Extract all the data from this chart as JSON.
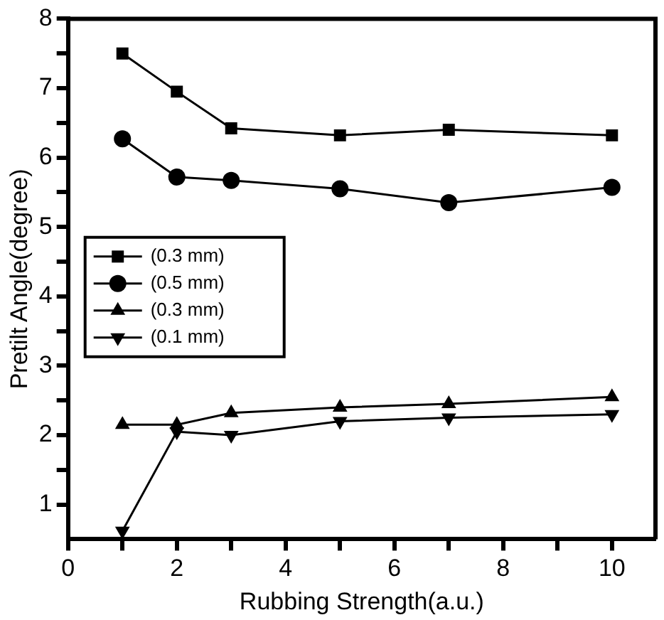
{
  "chart_data": {
    "type": "line",
    "xlabel": "Rubbing Strength(a.u.)",
    "ylabel": "Pretilt Angle(degree)",
    "x": [
      1,
      2,
      3,
      5,
      7,
      10
    ],
    "series": [
      {
        "name": "(0.3 mm)",
        "color": "#000000",
        "marker": "square",
        "values": [
          7.5,
          6.95,
          6.42,
          6.32,
          6.4,
          6.32
        ]
      },
      {
        "name": "(0.5 mm)",
        "color": "#000000",
        "marker": "circle",
        "values": [
          6.27,
          5.72,
          5.67,
          5.55,
          5.35,
          5.57
        ]
      },
      {
        "name": "(0.3 mm)",
        "color": "#000000",
        "marker": "triangle",
        "values": [
          2.15,
          2.15,
          2.32,
          2.4,
          2.45,
          2.55
        ]
      },
      {
        "name": "(0.1 mm)",
        "color": "#000000",
        "marker": "triangle-down",
        "values": [
          0.62,
          2.05,
          2.0,
          2.2,
          2.25,
          2.3
        ]
      }
    ],
    "xlim": [
      0,
      10.8
    ],
    "ylim": [
      0.5,
      8
    ],
    "xticks": [
      0,
      {
        "value": 1,
        "label": null
      },
      2,
      {
        "value": 3,
        "label": null
      },
      4,
      {
        "value": 5,
        "label": null
      },
      6,
      {
        "value": 7,
        "label": null
      },
      8,
      {
        "value": 9,
        "label": null
      },
      10
    ],
    "yticks": [
      1,
      {
        "value": 1.5,
        "label": null
      },
      2,
      {
        "value": 2.5,
        "label": null
      },
      3,
      {
        "value": 3.5,
        "label": null
      },
      4,
      {
        "value": 4.5,
        "label": null
      },
      5,
      {
        "value": 5.5,
        "label": null
      },
      6,
      {
        "value": 6.5,
        "label": null
      },
      7,
      {
        "value": 7.5,
        "label": null
      },
      8
    ],
    "grid": false,
    "legend": "left",
    "line_style": "solid"
  }
}
